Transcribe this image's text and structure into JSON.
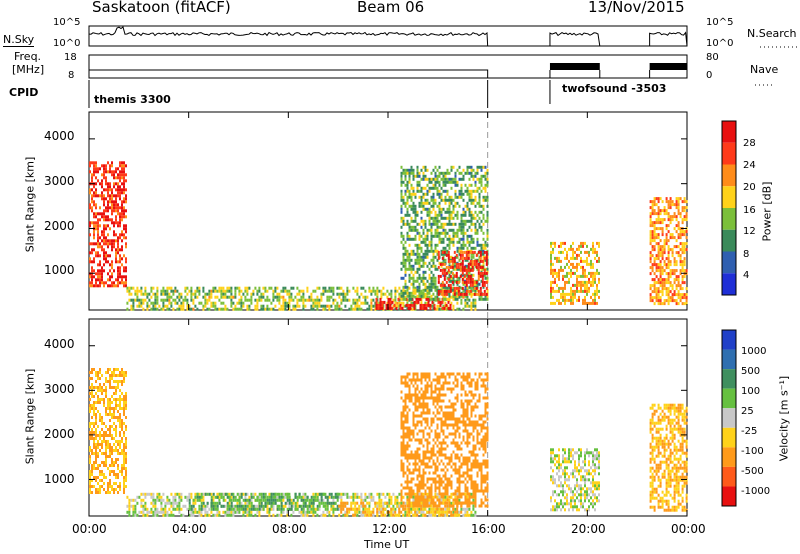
{
  "header": {
    "station": "Saskatoon (fitACF)",
    "beam": "Beam 06",
    "date": "13/Nov/2015"
  },
  "nsky_panel": {
    "left_label": "N.Sky",
    "left_ticks": [
      "10^5",
      "10^0"
    ],
    "right_label": "N.Search",
    "right_ticks": [
      "10^5",
      "10^0"
    ]
  },
  "freq_panel": {
    "left_label_line1": "Freq.",
    "left_label_line2": "[MHz]",
    "left_ticks": [
      "18",
      "8"
    ],
    "right_label": "Nave",
    "right_ticks": [
      "80",
      "0"
    ]
  },
  "cpid_panel": {
    "label": "CPID",
    "modes": [
      {
        "name": "themis 3300",
        "start": "00:00",
        "end": "16:00"
      },
      {
        "name": "twofsound -3503",
        "start": "18:30",
        "end": "24:00"
      }
    ]
  },
  "x_axis": {
    "label": "Time UT",
    "ticks": [
      "00:00",
      "04:00",
      "08:00",
      "12:00",
      "16:00",
      "20:00",
      "00:00"
    ]
  },
  "power_panel": {
    "ylabel": "Slant Range [km]",
    "yticks": [
      "1000",
      "2000",
      "3000",
      "4000"
    ],
    "colorbar_label": "Power [dB]",
    "colorbar_ticks": [
      "4",
      "8",
      "12",
      "16",
      "20",
      "24",
      "28"
    ],
    "colorbar_colors": [
      "#1f2fd6",
      "#2f5fb0",
      "#3a8a5a",
      "#7bbf3a",
      "#ffd21a",
      "#ff8c1a",
      "#ff3a1a",
      "#e81010"
    ]
  },
  "velocity_panel": {
    "ylabel": "Slant Range [km]",
    "yticks": [
      "1000",
      "2000",
      "3000",
      "4000"
    ],
    "colorbar_label": "Velocity [m s⁻¹]",
    "colorbar_ticks": [
      "1000",
      "500",
      "100",
      "25",
      "-25",
      "-100",
      "-500",
      "-1000"
    ],
    "colorbar_colors": [
      "#2040c8",
      "#2f6fb0",
      "#3f8f5f",
      "#66c040",
      "#c8c8c8",
      "#ffd21a",
      "#ff9a1a",
      "#ff5a1a",
      "#e81010"
    ]
  },
  "chart_data": [
    {
      "type": "line",
      "title": "N.Sky / N.Search",
      "x": [
        "00:00",
        "16:00",
        "18:30",
        "20:30",
        "22:30",
        "24:00"
      ],
      "series": [
        {
          "name": "N.Sky",
          "segments": [
            [
              "00:00",
              "16:00"
            ],
            [
              "18:30",
              "20:30"
            ],
            [
              "22:30",
              "24:00"
            ]
          ]
        }
      ],
      "yscale": "log",
      "ylim": [
        1,
        100000
      ]
    },
    {
      "type": "line",
      "title": "Freq. [MHz] / Nave",
      "series": [
        {
          "name": "Freq.",
          "segments": [
            [
              "00:00",
              "16:00"
            ]
          ]
        },
        {
          "name": "Nave",
          "segments": [
            [
              "18:30",
              "20:30"
            ],
            [
              "22:30",
              "24:00"
            ]
          ]
        }
      ],
      "ylim": [
        8,
        18
      ],
      "ylim_right": [
        0,
        80
      ]
    },
    {
      "type": "heatmap",
      "title": "Power",
      "xlabel": "Time UT",
      "ylabel": "Slant Range [km]",
      "xlim": [
        "00:00",
        "24:00"
      ],
      "ylim": [
        180,
        4600
      ],
      "zlabel": "Power [dB]",
      "zlim": [
        0,
        30
      ],
      "regions": [
        {
          "t": [
            "00:00",
            "01:30"
          ],
          "range_km": [
            700,
            3500
          ],
          "power_db": 26
        },
        {
          "t": [
            "01:30",
            "15:30"
          ],
          "range_km": [
            200,
            700
          ],
          "power_db": 14
        },
        {
          "t": [
            "11:30",
            "14:30"
          ],
          "range_km": [
            200,
            450
          ],
          "power_db": 28
        },
        {
          "t": [
            "12:30",
            "16:00"
          ],
          "range_km": [
            400,
            3400
          ],
          "power_db": 12
        },
        {
          "t": [
            "14:00",
            "16:00"
          ],
          "range_km": [
            500,
            1500
          ],
          "power_db": 26
        },
        {
          "t": [
            "18:30",
            "20:30"
          ],
          "range_km": [
            300,
            1700
          ],
          "power_db": 18
        },
        {
          "t": [
            "22:30",
            "24:00"
          ],
          "range_km": [
            300,
            2700
          ],
          "power_db": 20
        }
      ]
    },
    {
      "type": "heatmap",
      "title": "Velocity",
      "xlabel": "Time UT",
      "ylabel": "Slant Range [km]",
      "xlim": [
        "00:00",
        "24:00"
      ],
      "ylim": [
        180,
        4600
      ],
      "zlabel": "Velocity [m s⁻¹]",
      "zlim": [
        -1000,
        1000
      ],
      "regions": [
        {
          "t": [
            "00:00",
            "01:30"
          ],
          "range_km": [
            700,
            3500
          ],
          "velocity": -100
        },
        {
          "t": [
            "01:30",
            "15:30"
          ],
          "range_km": [
            200,
            700
          ],
          "velocity": 0
        },
        {
          "t": [
            "04:00",
            "10:00"
          ],
          "range_km": [
            300,
            700
          ],
          "velocity": 100
        },
        {
          "t": [
            "10:00",
            "15:00"
          ],
          "range_km": [
            200,
            500
          ],
          "velocity": -100
        },
        {
          "t": [
            "12:30",
            "16:00"
          ],
          "range_km": [
            400,
            3400
          ],
          "velocity": -300
        },
        {
          "t": [
            "18:30",
            "20:30"
          ],
          "range_km": [
            300,
            1700
          ],
          "velocity": 0
        },
        {
          "t": [
            "22:30",
            "24:00"
          ],
          "range_km": [
            300,
            2700
          ],
          "velocity": -100
        }
      ]
    }
  ]
}
